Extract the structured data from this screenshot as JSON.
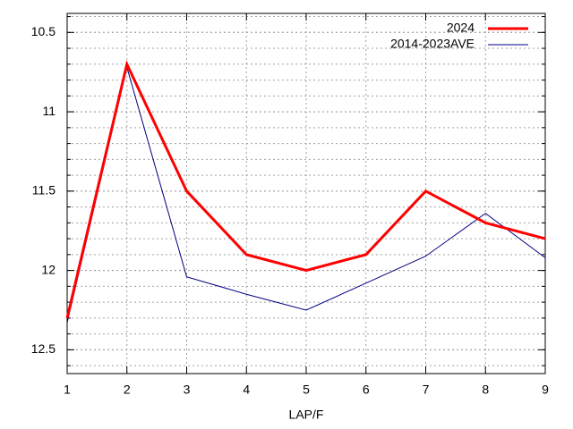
{
  "chart_data": {
    "type": "line",
    "x_label": "LAP/F",
    "x": [
      1,
      2,
      3,
      4,
      5,
      6,
      7,
      8,
      9
    ],
    "series": [
      {
        "name": "2024",
        "color": "#ff0000",
        "values": [
          12.3,
          10.7,
          11.5,
          11.9,
          12.0,
          11.9,
          11.5,
          11.7,
          11.8
        ]
      },
      {
        "name": "2014-2023AVE",
        "color": "#000080",
        "values": [
          12.33,
          10.72,
          12.04,
          12.15,
          12.25,
          12.08,
          11.91,
          11.64,
          11.92
        ]
      }
    ],
    "xlim": [
      1,
      9
    ],
    "xticks": [
      1,
      2,
      3,
      4,
      5,
      6,
      7,
      8,
      9
    ],
    "ylim": [
      10.38,
      12.65
    ],
    "yticks": [
      10.5,
      11,
      11.5,
      12,
      12.5
    ],
    "y_reversed": true,
    "y_minor_step": 0.1,
    "grid": true,
    "legend": "top-right"
  }
}
